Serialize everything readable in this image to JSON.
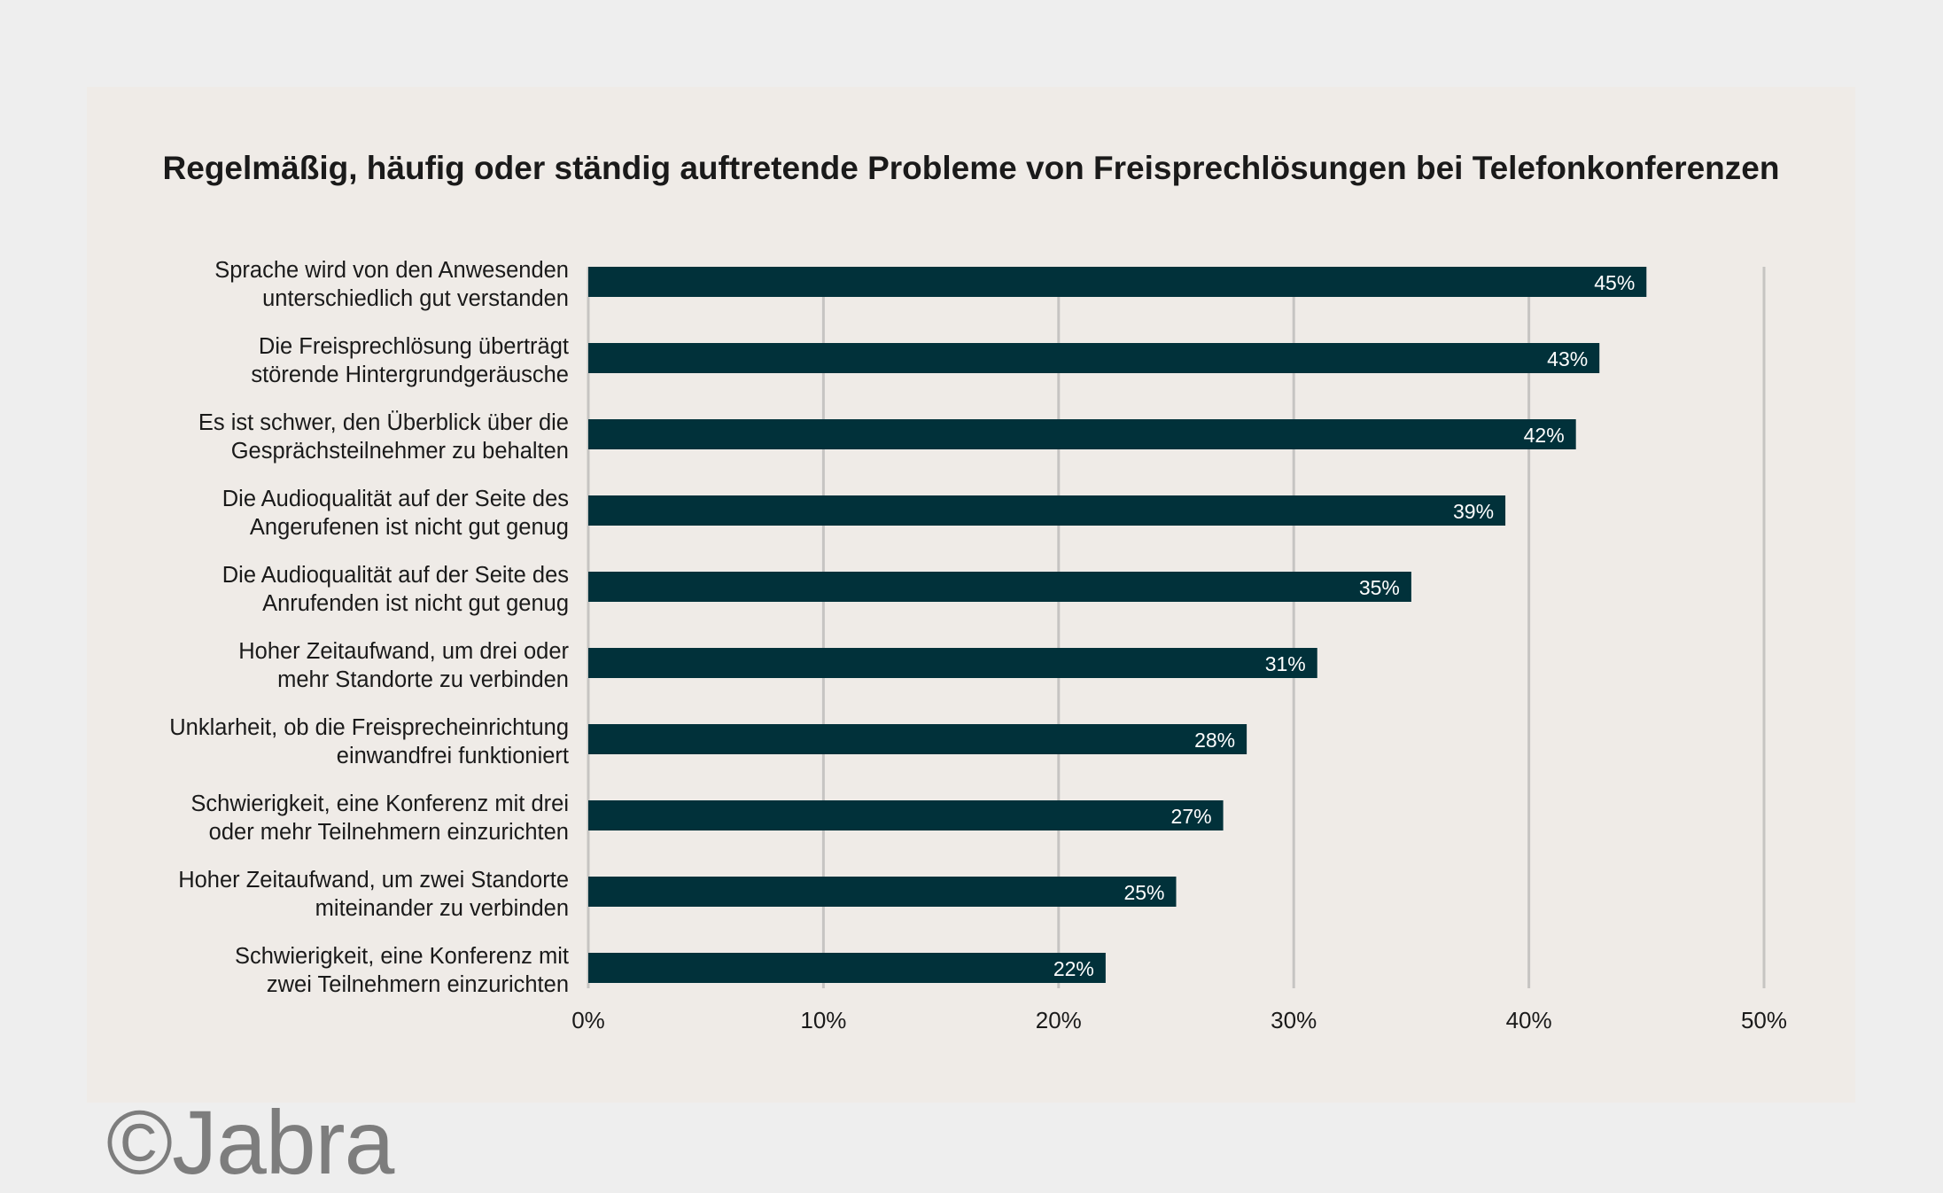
{
  "chart_data": {
    "type": "bar",
    "orientation": "horizontal",
    "title": "Regelmäßig, häufig oder ständig auftretende Probleme von Freisprechlösungen bei Telefonkonferenzen",
    "categories": [
      [
        "Sprache wird von den Anwesenden",
        "unterschiedlich gut verstanden"
      ],
      [
        "Die Freisprechlösung überträgt",
        "störende Hintergrundgeräusche"
      ],
      [
        "Es ist schwer, den Überblick über die",
        "Gesprächsteilnehmer zu behalten"
      ],
      [
        "Die Audioqualität auf der Seite des",
        "Angerufenen ist nicht gut genug"
      ],
      [
        "Die Audioqualität auf der Seite des",
        "Anrufenden ist nicht gut genug"
      ],
      [
        "Hoher Zeitaufwand, um drei oder",
        "mehr Standorte zu verbinden"
      ],
      [
        "Unklarheit, ob die Freisprecheinrichtung",
        "einwandfrei funktioniert"
      ],
      [
        "Schwierigkeit, eine Konferenz mit drei",
        "oder mehr Teilnehmern einzurichten"
      ],
      [
        "Hoher Zeitaufwand, um zwei Standorte",
        "miteinander zu verbinden"
      ],
      [
        "Schwierigkeit, eine Konferenz mit",
        "zwei Teilnehmern einzurichten"
      ]
    ],
    "values": [
      45,
      43,
      42,
      39,
      35,
      31,
      28,
      27,
      25,
      22
    ],
    "value_labels": [
      "45%",
      "43%",
      "42%",
      "39%",
      "35%",
      "31%",
      "28%",
      "27%",
      "25%",
      "22%"
    ],
    "xlim": [
      0,
      50
    ],
    "xticks": [
      0,
      10,
      20,
      30,
      40,
      50
    ],
    "xtick_labels": [
      "0%",
      "10%",
      "20%",
      "30%",
      "40%",
      "50%"
    ],
    "grid": true,
    "bar_color": "#01313a",
    "grid_color": "#c6c4c2",
    "label_color": "#ffffff"
  },
  "watermark": "©Jabra"
}
